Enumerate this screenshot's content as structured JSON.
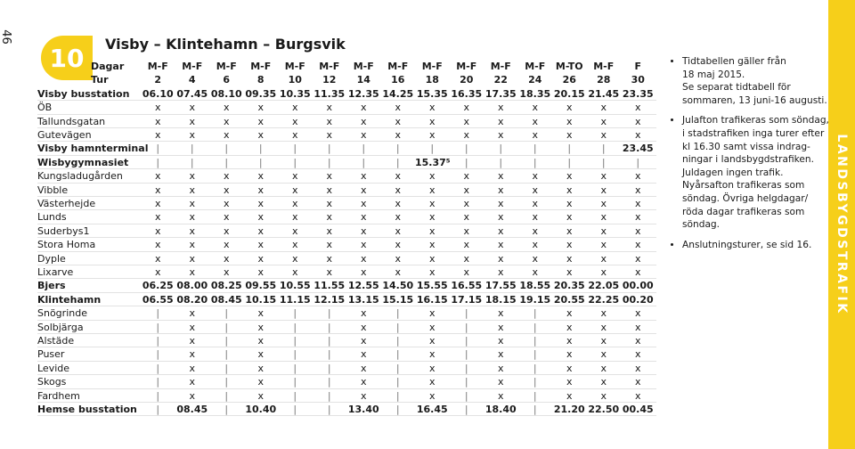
{
  "page_number": "46",
  "route": "10",
  "title": "Visby – Klintehamn – Burgsvik",
  "side_label": "LANDSBYGDSTRAFIK",
  "header_rows": [
    {
      "label": "Dagar",
      "cells": [
        "M-F",
        "M-F",
        "M-F",
        "M-F",
        "M-F",
        "M-F",
        "M-F",
        "M-F",
        "M-F",
        "M-F",
        "M-F",
        "M-F",
        "M-TO",
        "M-F",
        "F"
      ]
    },
    {
      "label": "Tur",
      "cells": [
        "2",
        "4",
        "6",
        "8",
        "10",
        "12",
        "14",
        "16",
        "18",
        "20",
        "22",
        "24",
        "26",
        "28",
        "30"
      ]
    }
  ],
  "rows": [
    {
      "label": "Visby busstation",
      "cells": [
        "06.10",
        "07.45",
        "08.10",
        "09.35",
        "10.35",
        "11.35",
        "12.35",
        "14.25",
        "15.35",
        "16.35",
        "17.35",
        "18.35",
        "20.15",
        "21.45",
        "23.35"
      ]
    },
    {
      "label": "ÖB",
      "cells": [
        "x",
        "x",
        "x",
        "x",
        "x",
        "x",
        "x",
        "x",
        "x",
        "x",
        "x",
        "x",
        "x",
        "x",
        "x"
      ]
    },
    {
      "label": "Tallundsgatan",
      "cells": [
        "x",
        "x",
        "x",
        "x",
        "x",
        "x",
        "x",
        "x",
        "x",
        "x",
        "x",
        "x",
        "x",
        "x",
        "x"
      ]
    },
    {
      "label": "Gutevägen",
      "cells": [
        "x",
        "x",
        "x",
        "x",
        "x",
        "x",
        "x",
        "x",
        "x",
        "x",
        "x",
        "x",
        "x",
        "x",
        "x"
      ]
    },
    {
      "label": "Visby hamnterminal",
      "cells": [
        "|",
        "|",
        "|",
        "|",
        "|",
        "|",
        "|",
        "|",
        "|",
        "|",
        "|",
        "|",
        "|",
        "|",
        "23.45"
      ]
    },
    {
      "label": "Wisbygymnasiet",
      "cells": [
        "|",
        "|",
        "|",
        "|",
        "|",
        "|",
        "|",
        "|",
        "15.37⁵",
        "|",
        "|",
        "|",
        "|",
        "|",
        "|"
      ]
    },
    {
      "label": "Kungsladugården",
      "cells": [
        "x",
        "x",
        "x",
        "x",
        "x",
        "x",
        "x",
        "x",
        "x",
        "x",
        "x",
        "x",
        "x",
        "x",
        "x"
      ]
    },
    {
      "label": "Vibble",
      "cells": [
        "x",
        "x",
        "x",
        "x",
        "x",
        "x",
        "x",
        "x",
        "x",
        "x",
        "x",
        "x",
        "x",
        "x",
        "x"
      ]
    },
    {
      "label": "Västerhejde",
      "cells": [
        "x",
        "x",
        "x",
        "x",
        "x",
        "x",
        "x",
        "x",
        "x",
        "x",
        "x",
        "x",
        "x",
        "x",
        "x"
      ]
    },
    {
      "label": "Lunds",
      "cells": [
        "x",
        "x",
        "x",
        "x",
        "x",
        "x",
        "x",
        "x",
        "x",
        "x",
        "x",
        "x",
        "x",
        "x",
        "x"
      ]
    },
    {
      "label": "Suderbys1",
      "cells": [
        "x",
        "x",
        "x",
        "x",
        "x",
        "x",
        "x",
        "x",
        "x",
        "x",
        "x",
        "x",
        "x",
        "x",
        "x"
      ]
    },
    {
      "label": "Stora Homa",
      "cells": [
        "x",
        "x",
        "x",
        "x",
        "x",
        "x",
        "x",
        "x",
        "x",
        "x",
        "x",
        "x",
        "x",
        "x",
        "x"
      ]
    },
    {
      "label": "Dyple",
      "cells": [
        "x",
        "x",
        "x",
        "x",
        "x",
        "x",
        "x",
        "x",
        "x",
        "x",
        "x",
        "x",
        "x",
        "x",
        "x"
      ]
    },
    {
      "label": "Lixarve",
      "cells": [
        "x",
        "x",
        "x",
        "x",
        "x",
        "x",
        "x",
        "x",
        "x",
        "x",
        "x",
        "x",
        "x",
        "x",
        "x"
      ]
    },
    {
      "label": "Bjers",
      "cells": [
        "06.25",
        "08.00",
        "08.25",
        "09.55",
        "10.55",
        "11.55",
        "12.55",
        "14.50",
        "15.55",
        "16.55",
        "17.55",
        "18.55",
        "20.35",
        "22.05",
        "00.00"
      ]
    },
    {
      "label": "Klintehamn",
      "cells": [
        "06.55",
        "08.20",
        "08.45",
        "10.15",
        "11.15",
        "12.15",
        "13.15",
        "15.15",
        "16.15",
        "17.15",
        "18.15",
        "19.15",
        "20.55",
        "22.25",
        "00.20"
      ]
    },
    {
      "label": "Snögrinde",
      "cells": [
        "|",
        "x",
        "|",
        "x",
        "|",
        "|",
        "x",
        "|",
        "x",
        "|",
        "x",
        "|",
        "x",
        "x",
        "x"
      ]
    },
    {
      "label": "Solbjärga",
      "cells": [
        "|",
        "x",
        "|",
        "x",
        "|",
        "|",
        "x",
        "|",
        "x",
        "|",
        "x",
        "|",
        "x",
        "x",
        "x"
      ]
    },
    {
      "label": "Alstäde",
      "cells": [
        "|",
        "x",
        "|",
        "x",
        "|",
        "|",
        "x",
        "|",
        "x",
        "|",
        "x",
        "|",
        "x",
        "x",
        "x"
      ]
    },
    {
      "label": "Puser",
      "cells": [
        "|",
        "x",
        "|",
        "x",
        "|",
        "|",
        "x",
        "|",
        "x",
        "|",
        "x",
        "|",
        "x",
        "x",
        "x"
      ]
    },
    {
      "label": "Levide",
      "cells": [
        "|",
        "x",
        "|",
        "x",
        "|",
        "|",
        "x",
        "|",
        "x",
        "|",
        "x",
        "|",
        "x",
        "x",
        "x"
      ]
    },
    {
      "label": "Skogs",
      "cells": [
        "|",
        "x",
        "|",
        "x",
        "|",
        "|",
        "x",
        "|",
        "x",
        "|",
        "x",
        "|",
        "x",
        "x",
        "x"
      ]
    },
    {
      "label": "Fardhem",
      "cells": [
        "|",
        "x",
        "|",
        "x",
        "|",
        "|",
        "x",
        "|",
        "x",
        "|",
        "x",
        "|",
        "x",
        "x",
        "x"
      ]
    },
    {
      "label": "Hemse busstation",
      "cells": [
        "|",
        "08.45",
        "|",
        "10.40",
        "|",
        "|",
        "13.40",
        "|",
        "16.45",
        "|",
        "18.40",
        "|",
        "21.20",
        "22.50",
        "00.45"
      ]
    }
  ],
  "notes": [
    [
      "Tidtabellen gäller från",
      "18 maj 2015.",
      "Se separat tidtabell för",
      "sommaren, 13 juni-16 augusti."
    ],
    [
      "Julafton trafikeras som söndag,",
      "i stadstrafiken inga turer efter",
      "kl 16.30 samt vissa indrag-",
      "ningar i landsbygdstrafiken.",
      "Juldagen ingen trafik.",
      "Nyårsafton trafikeras som",
      "söndag. Övriga helgdagar/",
      "röda dagar trafikeras som",
      "söndag."
    ],
    [
      "Anslutningsturer, se sid 16."
    ]
  ]
}
